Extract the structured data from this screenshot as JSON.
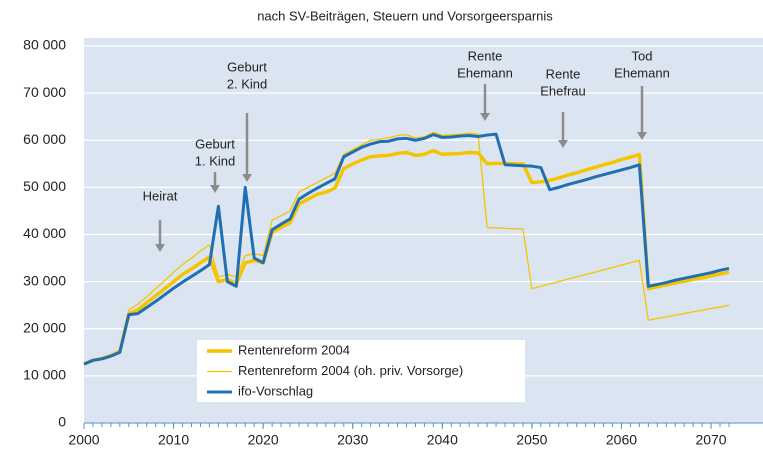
{
  "chart_data": {
    "type": "line",
    "title": "nach SV-Beiträgen, Steuern und Vorsorgeersparnis",
    "x": [
      2000,
      2001,
      2002,
      2003,
      2004,
      2005,
      2006,
      2007,
      2008,
      2009,
      2010,
      2011,
      2012,
      2013,
      2014,
      2015,
      2016,
      2017,
      2018,
      2019,
      2020,
      2021,
      2022,
      2023,
      2024,
      2025,
      2026,
      2027,
      2028,
      2029,
      2030,
      2031,
      2032,
      2033,
      2034,
      2035,
      2036,
      2037,
      2038,
      2039,
      2040,
      2041,
      2042,
      2043,
      2044,
      2045,
      2046,
      2047,
      2048,
      2049,
      2050,
      2051,
      2052,
      2053,
      2054,
      2055,
      2056,
      2057,
      2058,
      2059,
      2060,
      2061,
      2062,
      2063,
      2064,
      2065,
      2066,
      2067,
      2068,
      2069,
      2070,
      2071,
      2072
    ],
    "series": [
      {
        "name": "Rentenreform 2004",
        "color": "#f5c400",
        "width": 3.5,
        "values": [
          12500,
          13300,
          13700,
          14300,
          15200,
          23200,
          24000,
          25500,
          27000,
          28500,
          30000,
          31500,
          32700,
          34000,
          35200,
          30000,
          30500,
          29500,
          34000,
          34500,
          34000,
          40500,
          41500,
          42500,
          46500,
          47500,
          48500,
          49000,
          49800,
          54000,
          55000,
          55800,
          56500,
          56700,
          56800,
          57200,
          57400,
          56800,
          57000,
          57800,
          57000,
          57100,
          57200,
          57400,
          57300,
          55000,
          55100,
          55100,
          55000,
          55000,
          51000,
          51200,
          51500,
          52000,
          52600,
          53100,
          53700,
          54200,
          54800,
          55300,
          55900,
          56400,
          57000,
          28500,
          28900,
          29300,
          29700,
          30100,
          30500,
          30800,
          31200,
          31600,
          32000
        ]
      },
      {
        "name": "Rentenreform 2004 (oh. priv. Vorsorge)",
        "color": "#f5c400",
        "width": 1.3,
        "values": [
          12500,
          13300,
          13800,
          14500,
          15500,
          24000,
          25200,
          26800,
          28500,
          30200,
          32000,
          33600,
          35000,
          36500,
          37800,
          31000,
          31500,
          31000,
          35500,
          36000,
          35500,
          43000,
          44000,
          45000,
          49000,
          50000,
          51000,
          52000,
          53000,
          57000,
          58000,
          59000,
          60000,
          60200,
          60500,
          61000,
          61200,
          60500,
          60700,
          61700,
          61000,
          61200,
          61300,
          61500,
          61300,
          41500,
          41400,
          41300,
          41200,
          41200,
          28500,
          29000,
          29500,
          30000,
          30500,
          31000,
          31500,
          32000,
          32500,
          33000,
          33500,
          34000,
          34500,
          21800,
          22200,
          22500,
          22900,
          23200,
          23600,
          23900,
          24300,
          24600,
          25000
        ]
      },
      {
        "name": "ifo-Vorschlag",
        "color": "#1f6fb2",
        "width": 3,
        "values": [
          12500,
          13300,
          13600,
          14200,
          15000,
          23000,
          23200,
          24500,
          25800,
          27200,
          28600,
          29900,
          31100,
          32300,
          33600,
          46000,
          30000,
          29000,
          50000,
          35000,
          34000,
          41000,
          42200,
          43300,
          47500,
          48700,
          49800,
          50800,
          51800,
          56500,
          57500,
          58500,
          59200,
          59700,
          59800,
          60300,
          60400,
          60000,
          60400,
          61200,
          60600,
          60700,
          60900,
          61000,
          60800,
          61100,
          61300,
          54800,
          54700,
          54600,
          54500,
          54200,
          49500,
          50000,
          50600,
          51100,
          51600,
          52200,
          52700,
          53200,
          53700,
          54200,
          54800,
          29000,
          29400,
          29800,
          30300,
          30700,
          31100,
          31500,
          31900,
          32400,
          32800
        ]
      }
    ],
    "xlim": [
      2000,
      2075.8
    ],
    "xticks": [
      2000,
      2010,
      2020,
      2030,
      2040,
      2050,
      2060,
      2070
    ],
    "ylim": [
      0,
      80000
    ],
    "yticks": [
      0,
      {
        "value": 10000,
        "label": "10 000"
      },
      {
        "value": 20000,
        "label": "20 000"
      },
      {
        "value": 30000,
        "label": "30 000"
      },
      {
        "value": 40000,
        "label": "40 000"
      },
      {
        "value": 50000,
        "label": "50 000"
      },
      {
        "value": 60000,
        "label": "60 000"
      },
      {
        "value": 70000,
        "label": "70 000"
      },
      {
        "value": 80000,
        "label": "80 000"
      }
    ],
    "grid": true,
    "background": "#dbe5f1",
    "annotations": [
      [
        "Heirat"
      ],
      [
        "Geburt",
        "1. Kind"
      ],
      [
        "Geburt",
        "2. Kind"
      ],
      [
        "Rente",
        "Ehemann"
      ],
      [
        "Rente",
        "Ehefrau"
      ],
      [
        "Tod",
        "Ehemann"
      ]
    ]
  }
}
